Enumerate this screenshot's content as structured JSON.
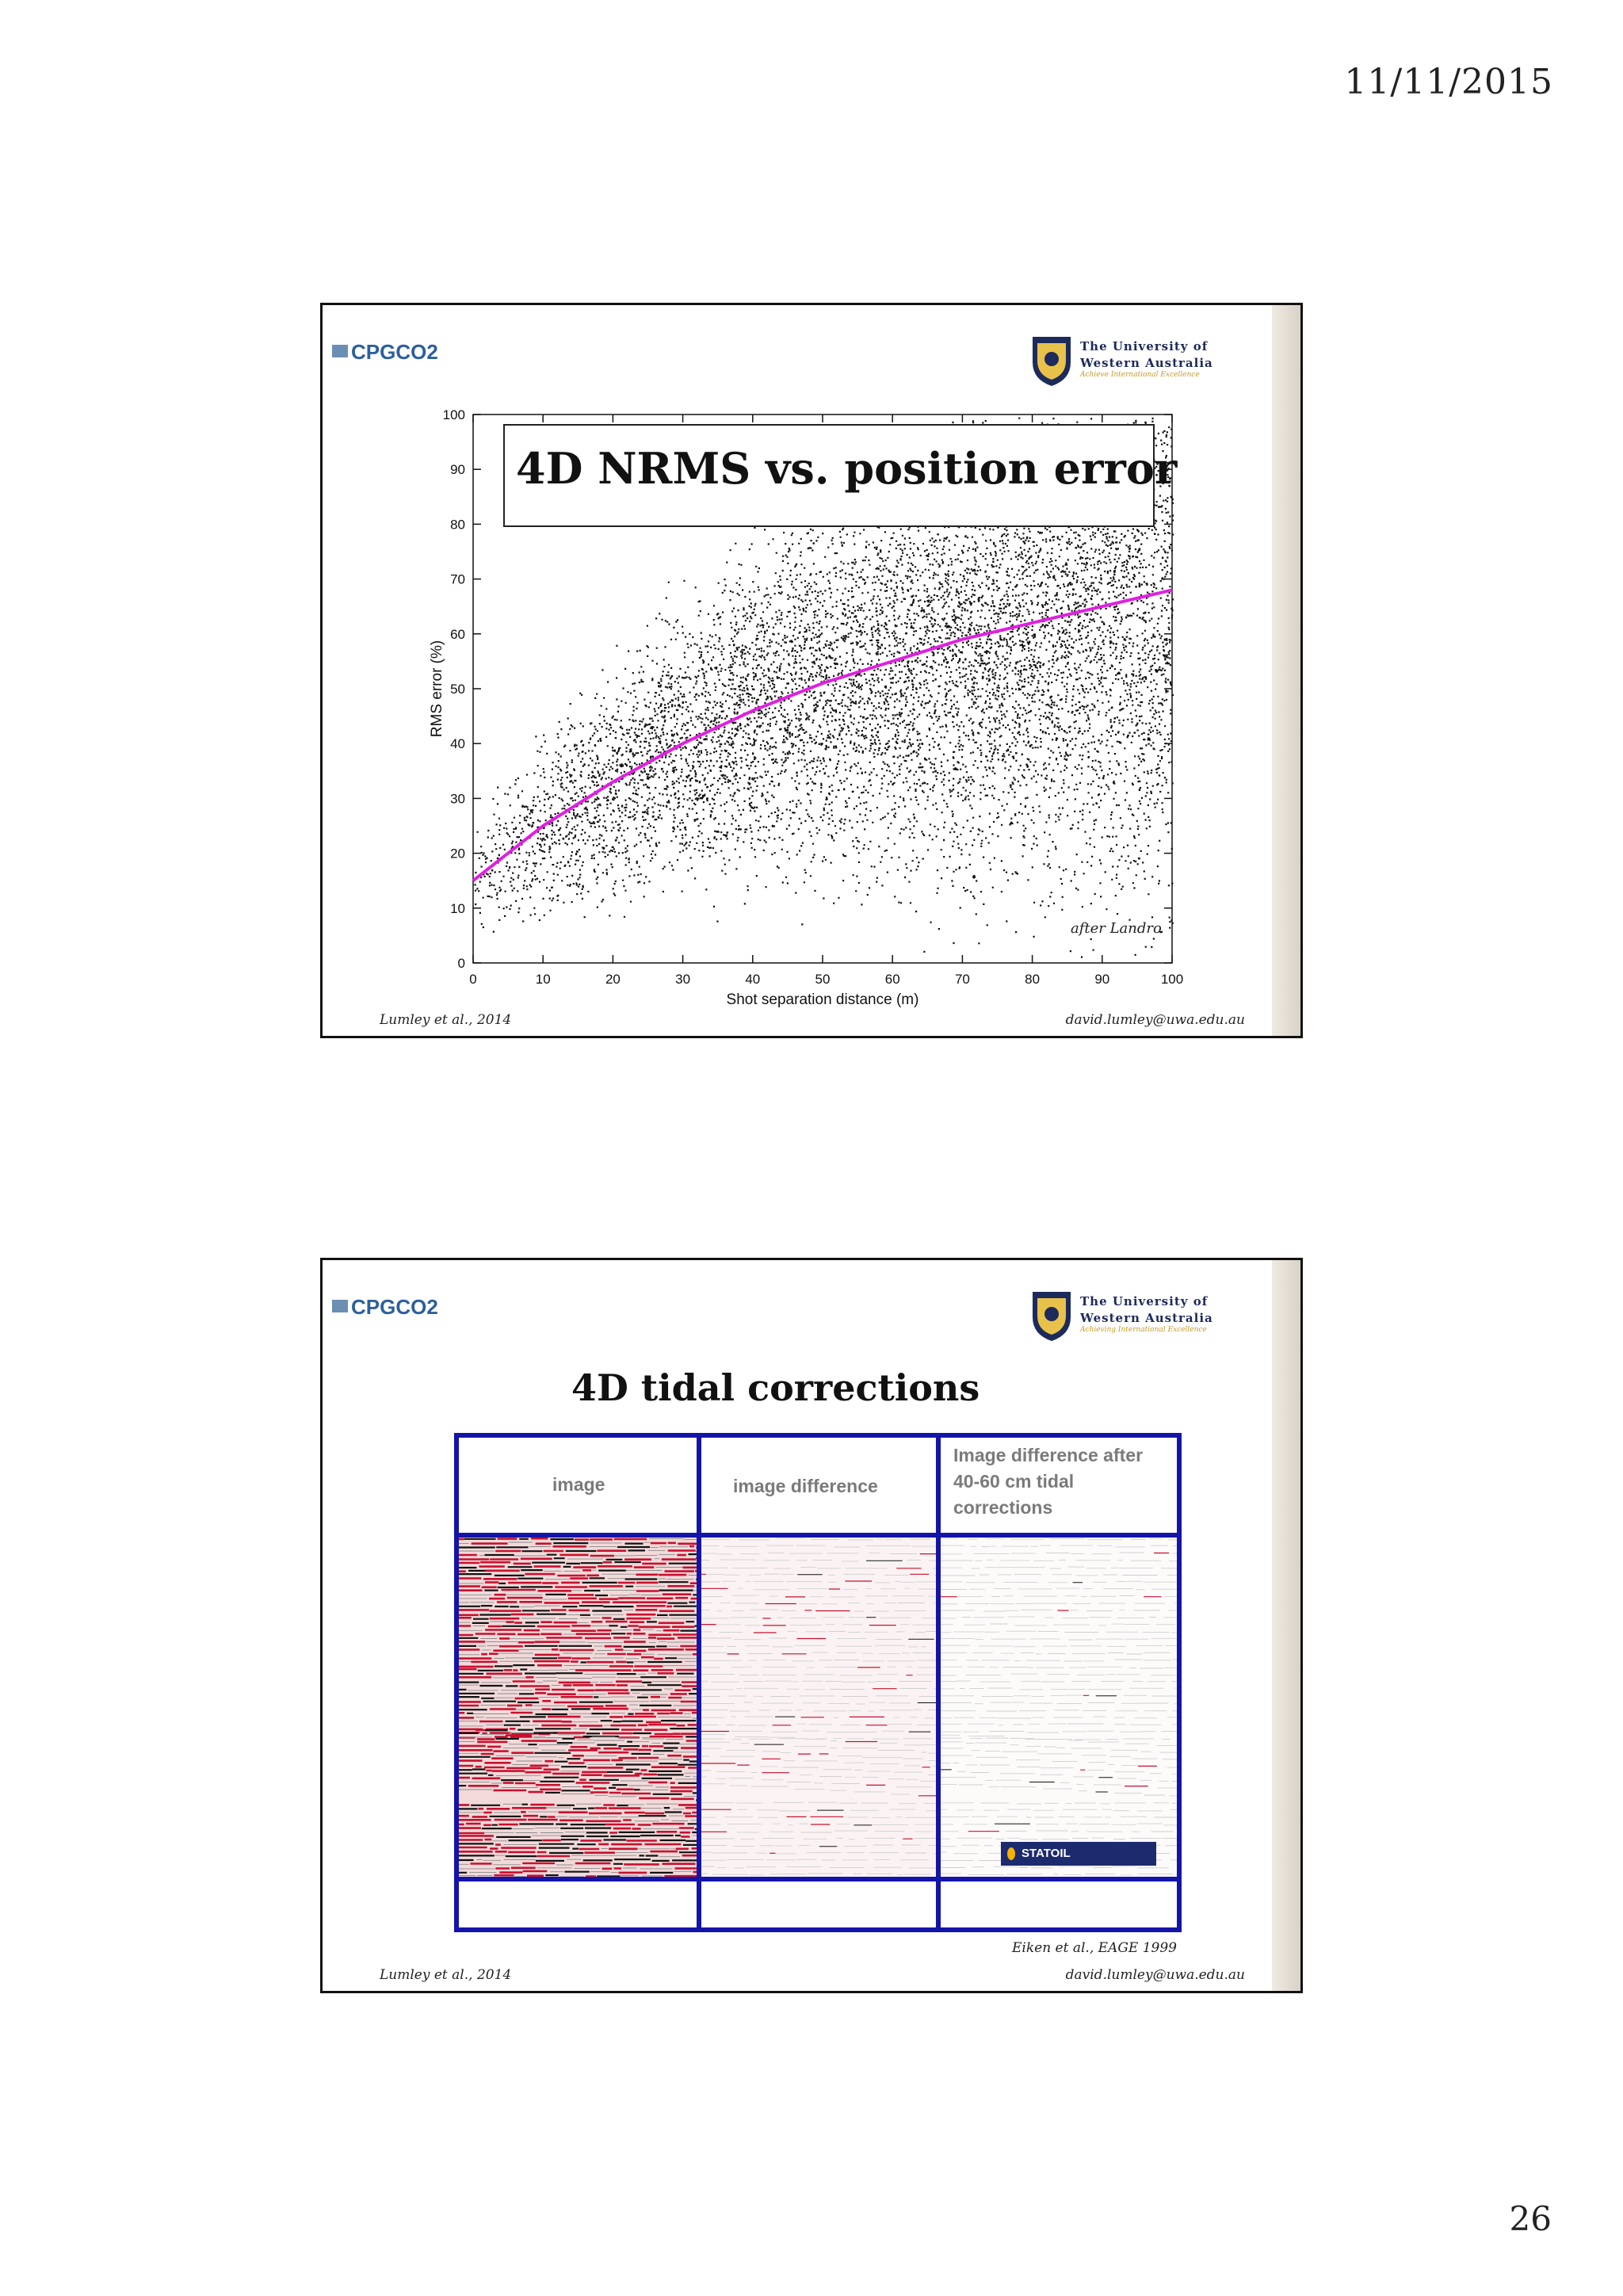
{
  "header": {
    "date": "11/11/2015"
  },
  "footer": {
    "page_number": "26"
  },
  "slides": [
    {
      "logo_left": "CPGCO2",
      "logo_right": [
        "The University of",
        "Western Australia"
      ],
      "logo_right_tagline": "Achieve International Excellence",
      "title": "4D NRMS vs. position error",
      "note": "after Landro",
      "footer_left": "Lumley et al., 2014",
      "footer_right": "david.lumley@uwa.edu.au"
    },
    {
      "logo_left": "CPGCO2",
      "logo_right": [
        "The University of",
        "Western Australia"
      ],
      "logo_right_tagline": "Achieving International Excellence",
      "title": "4D tidal corrections",
      "columns": [
        "image",
        "image difference",
        "Image difference after 40-60 cm tidal corrections"
      ],
      "statoil_label": "STATOIL",
      "citation": "Eiken et al., EAGE 1999",
      "footer_left": "Lumley et al., 2014",
      "footer_right": "david.lumley@uwa.edu.au"
    }
  ],
  "chart_data": {
    "type": "scatter",
    "xlabel": "Shot separation distance (m)",
    "ylabel": "RMS error (%)",
    "xlim": [
      0,
      100
    ],
    "ylim": [
      0,
      100
    ],
    "xticks": [
      0,
      10,
      20,
      30,
      40,
      50,
      60,
      70,
      80,
      90,
      100
    ],
    "yticks": [
      0,
      10,
      20,
      30,
      40,
      50,
      60,
      70,
      80,
      90,
      100
    ],
    "trend_color": "#e020e0",
    "trend_line": {
      "x": [
        0,
        10,
        20,
        30,
        40,
        50,
        60,
        70,
        80,
        90,
        100
      ],
      "y": [
        15,
        25,
        33,
        40,
        46,
        51,
        55,
        59,
        62,
        65,
        68
      ]
    }
  }
}
